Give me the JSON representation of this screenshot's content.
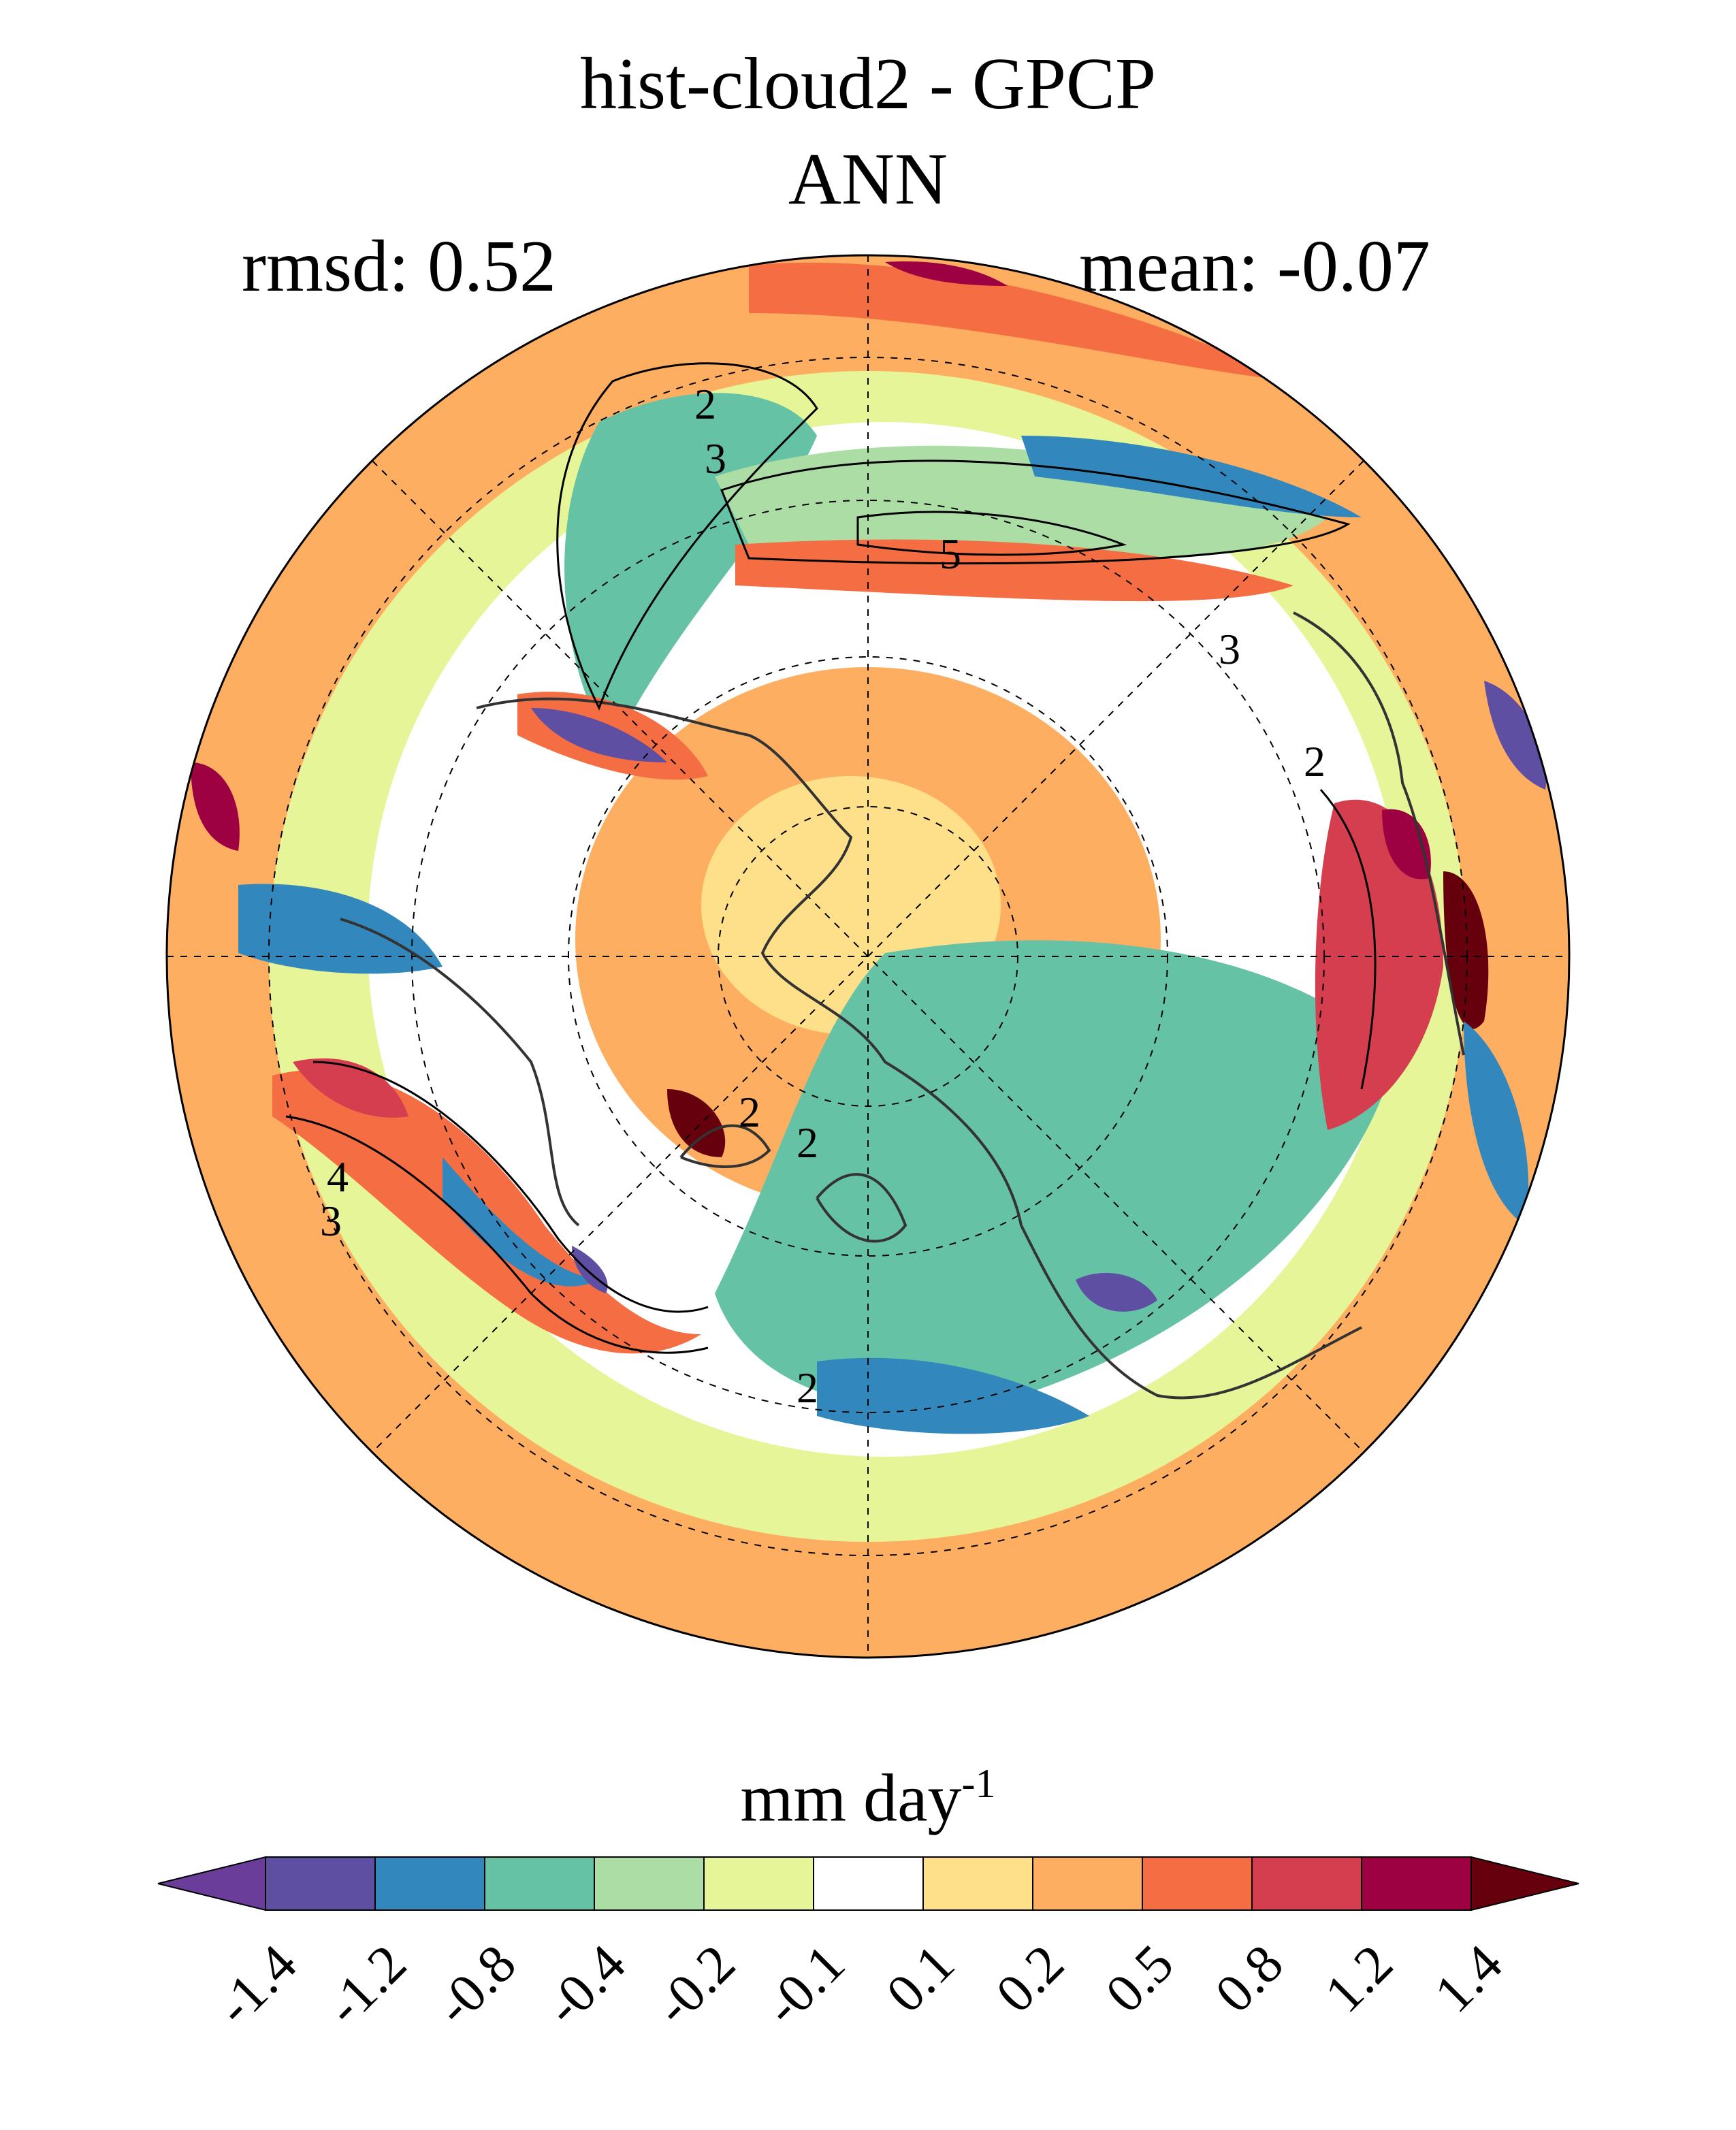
{
  "title": {
    "line1": "hist-cloud2 - GPCP",
    "line2": "ANN"
  },
  "stats": {
    "rmsd": "rmsd: 0.52",
    "mean": "mean: -0.07"
  },
  "map": {
    "projection": "north polar stereographic",
    "contour_labels": [
      "2",
      "3",
      "5",
      "3",
      "2",
      "4",
      "3",
      "2",
      "2",
      "2"
    ]
  },
  "colorbar": {
    "units_main": "mm day",
    "units_sup": "-1",
    "ticks": [
      "-1.4",
      "-1.2",
      "-0.8",
      "-0.4",
      "-0.2",
      "-0.1",
      "0.1",
      "0.2",
      "0.5",
      "0.8",
      "1.2",
      "1.4"
    ],
    "colors": [
      "#5e4fa2",
      "#3288bd",
      "#66c2a5",
      "#abdda4",
      "#e6f598",
      "#ffffff",
      "#fee08b",
      "#fdae61",
      "#f46d43",
      "#d53e4f",
      "#9e0142"
    ],
    "under_color": "#6a3d9a",
    "over_color": "#67000d"
  }
}
